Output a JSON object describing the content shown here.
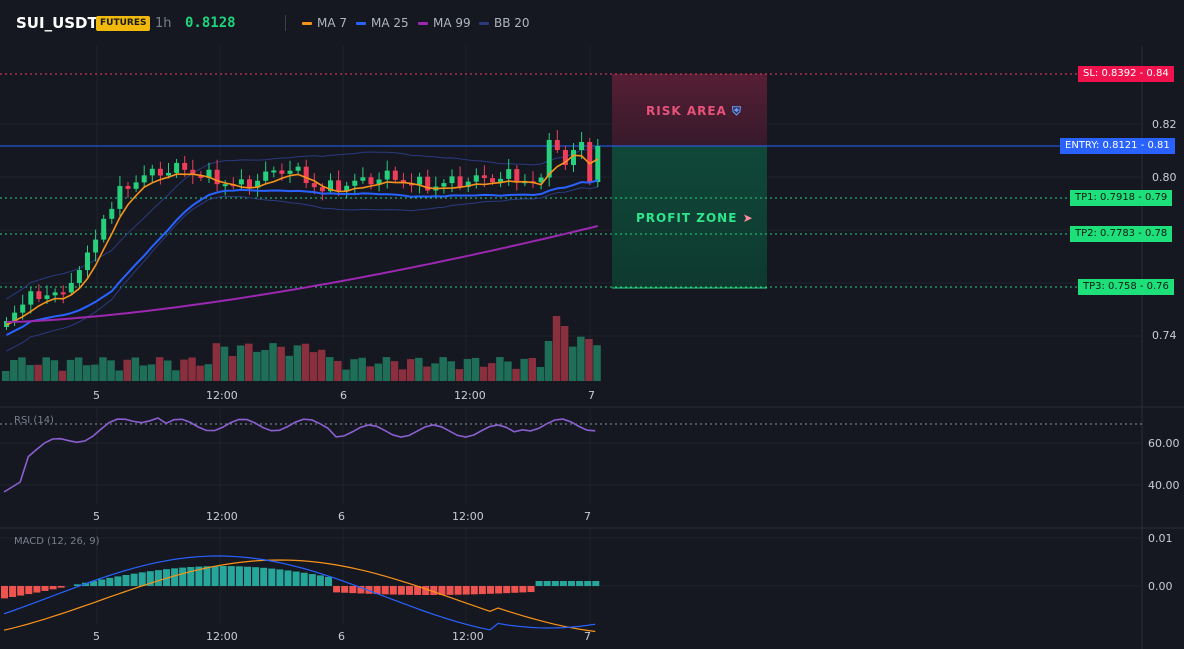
{
  "header": {
    "symbol": "SUI_USDT",
    "badge": "FUTURES",
    "timeframe": "1h",
    "price": "0.8128",
    "legend": [
      {
        "label": "MA 7",
        "color": "#f7931a"
      },
      {
        "label": "MA 25",
        "color": "#2962ff"
      },
      {
        "label": "MA 99",
        "color": "#9c27b0"
      },
      {
        "label": "BB 20",
        "color": "#2b3a80"
      }
    ]
  },
  "levels": {
    "sl": "SL: 0.8392 - 0.84",
    "entry": "ENTRY: 0.8121 - 0.81",
    "tp1": "TP1: 0.7918 - 0.79",
    "tp2": "TP2: 0.7783 - 0.78",
    "tp3": "TP3: 0.758 - 0.76"
  },
  "zones": {
    "risk": "RISK AREA",
    "profit": "PROFIT ZONE",
    "risk_icon": "shield-icon",
    "profit_icon": "rocket-icon"
  },
  "price_axis": [
    "0.82",
    "0.80",
    "0.74"
  ],
  "time_axis": [
    "5",
    "12:00",
    "6",
    "12:00",
    "7"
  ],
  "rsi": {
    "label": "RSI (14)",
    "ticks": [
      "60.00",
      "40.00"
    ]
  },
  "macd": {
    "label": "MACD (12, 26, 9)",
    "ticks": [
      "0.01",
      "0.00"
    ]
  },
  "colors": {
    "up": "#26d07c",
    "down": "#ef3e5a",
    "bg": "#151821"
  }
}
